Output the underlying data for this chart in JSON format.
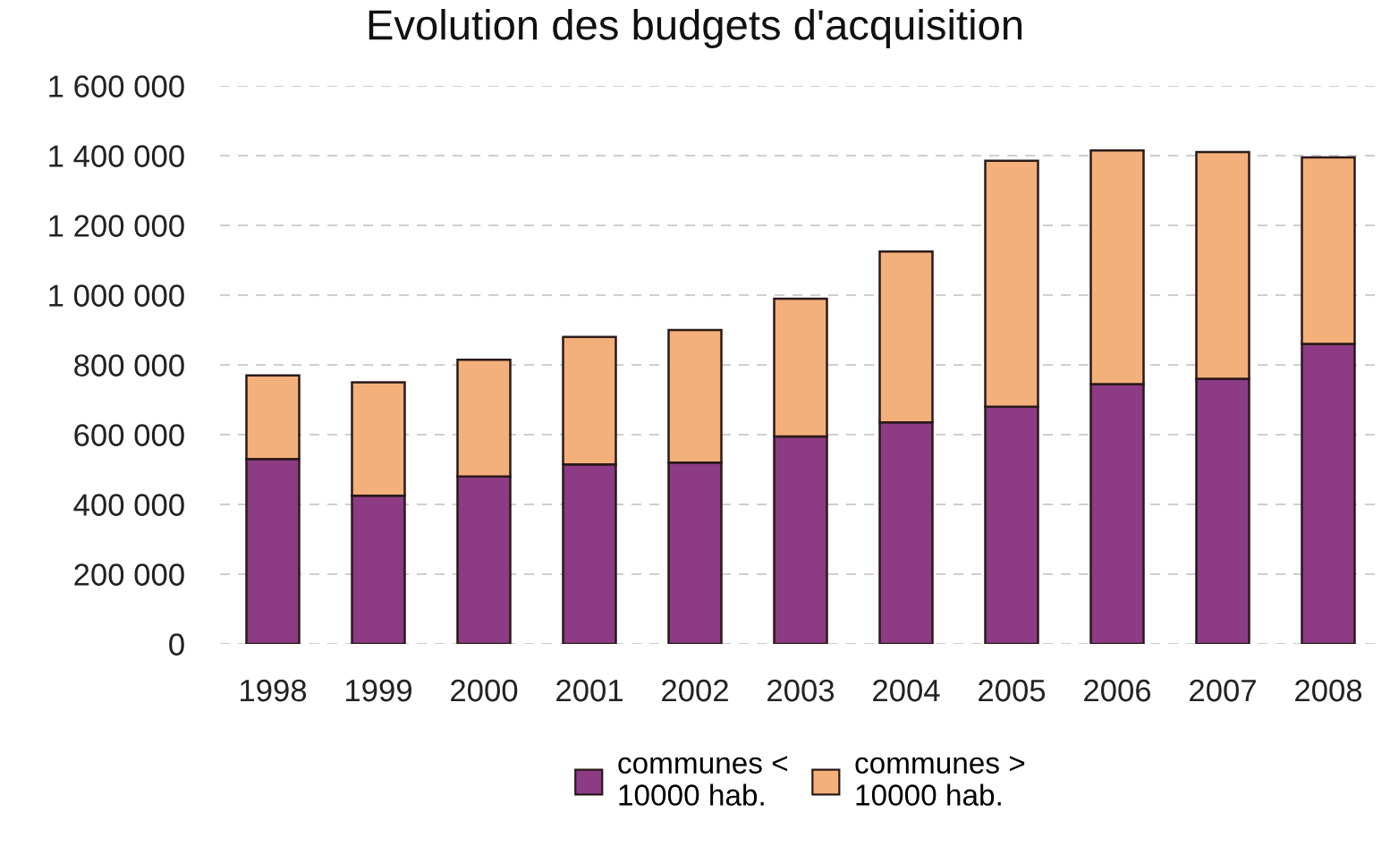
{
  "chart_data": {
    "type": "bar",
    "title": "Evolution des budgets d'acquisition",
    "categories": [
      "1998",
      "1999",
      "2000",
      "2001",
      "2002",
      "2003",
      "2004",
      "2005",
      "2006",
      "2007",
      "2008"
    ],
    "stacked": true,
    "series": [
      {
        "name": "communes < 10000 hab.",
        "color": "#8c3b84",
        "values": [
          530000,
          425000,
          480000,
          515000,
          520000,
          595000,
          635000,
          680000,
          745000,
          760000,
          860000
        ]
      },
      {
        "name": "communes > 10000 hab.",
        "color": "#f4b07a",
        "values": [
          240000,
          325000,
          335000,
          365000,
          380000,
          395000,
          490000,
          705000,
          670000,
          650000,
          535000
        ]
      }
    ],
    "ylim": [
      0,
      1600000
    ],
    "yticks": [
      0,
      {
        "value": 200000,
        "label": "200 000"
      },
      {
        "value": 400000,
        "label": "400 000"
      },
      {
        "value": 600000,
        "label": "600 000"
      },
      {
        "value": 800000,
        "label": "800 000"
      },
      {
        "value": 1000000,
        "label": "1 000 000"
      },
      {
        "value": 1200000,
        "label": "1 200 000"
      },
      {
        "value": 1400000,
        "label": "1 400 000"
      },
      {
        "value": 1600000,
        "label": "1 600 000"
      }
    ],
    "grid": "y",
    "legend": "bottom"
  }
}
